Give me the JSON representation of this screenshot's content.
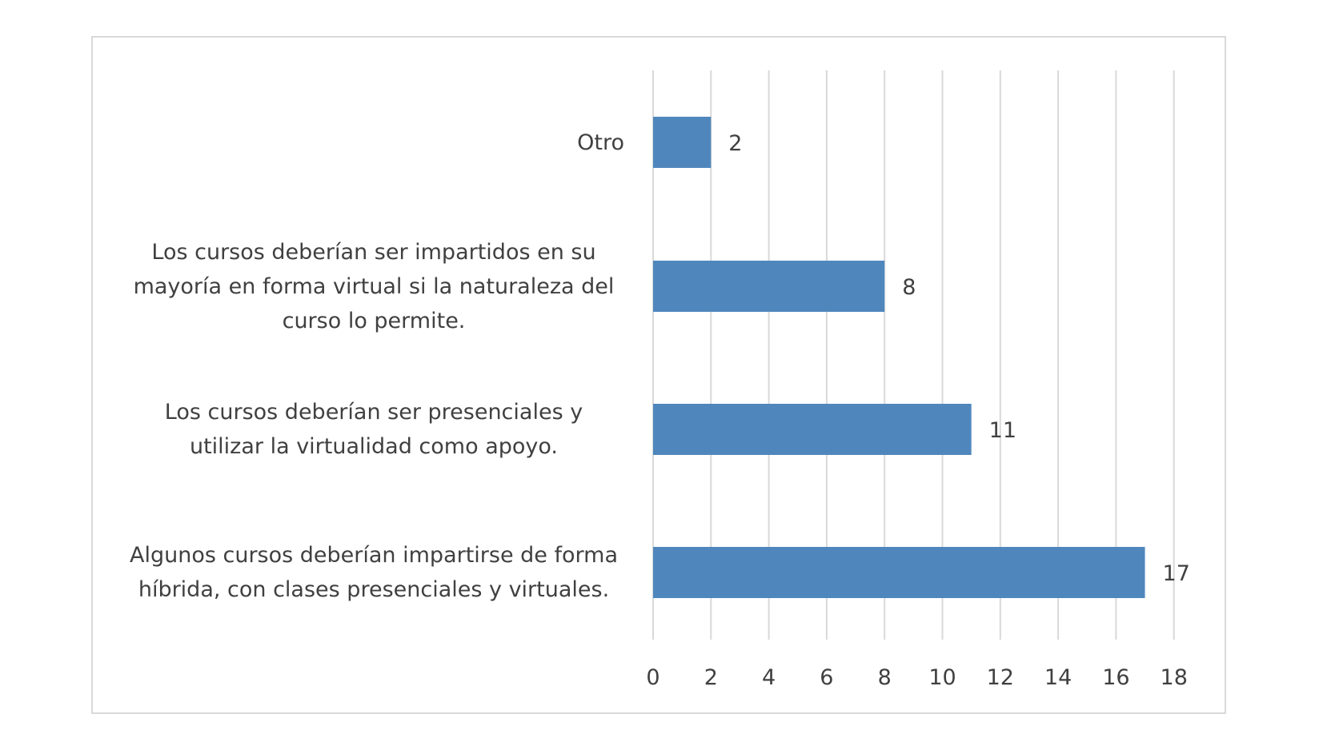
{
  "chart_data": {
    "type": "bar",
    "orientation": "horizontal",
    "categories": [
      "Otro",
      "Los cursos deberían ser impartidos en su\nmayoría en forma virtual si la naturaleza del\ncurso lo permite.",
      "Los cursos deberían ser presenciales y\nutilizar la virtualidad como apoyo.",
      "Algunos cursos deberían impartirse de forma\nhíbrida, con clases presenciales y virtuales."
    ],
    "values": [
      2,
      8,
      11,
      17
    ],
    "data_labels": [
      "2",
      "8",
      "11",
      "17"
    ],
    "xlim": [
      0,
      18
    ],
    "xticks": [
      0,
      2,
      4,
      6,
      8,
      10,
      12,
      14,
      16,
      18
    ],
    "title": "",
    "xlabel": "",
    "ylabel": "",
    "grid": "vertical",
    "legend": "none",
    "colors": {
      "bar": "#4f87bd",
      "grid": "#d9d9d9",
      "text": "#404040",
      "frame": "#d9d9d9"
    }
  }
}
